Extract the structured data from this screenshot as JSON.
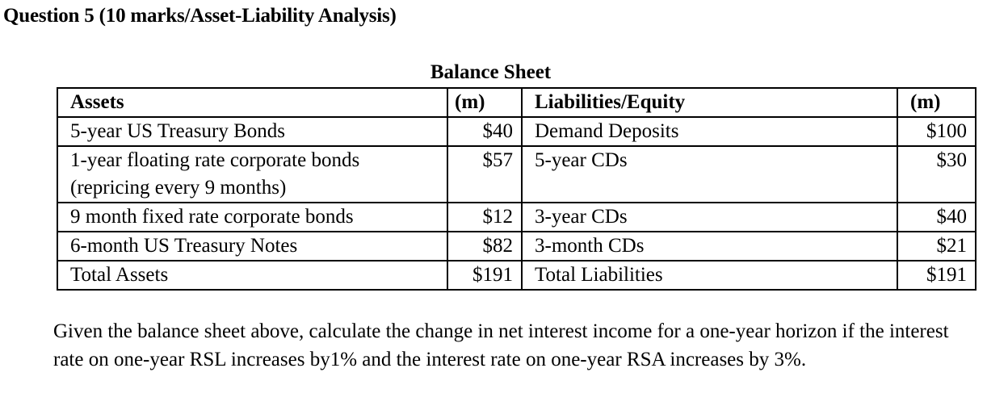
{
  "question": {
    "title": "Question 5 (10 marks/Asset-Liability Analysis)"
  },
  "balance_sheet": {
    "title": "Balance Sheet",
    "headers": {
      "assets": "Assets",
      "assets_unit": "(m)",
      "liabilities": "Liabilities/Equity",
      "liabilities_unit": "(m)"
    },
    "rows": [
      {
        "asset": "5-year US Treasury Bonds",
        "asset_value": "$40",
        "liability": "Demand Deposits",
        "liability_value": "$100"
      },
      {
        "asset": "1-year floating rate corporate bonds",
        "asset_note": "(repricing every 9 months)",
        "asset_value": "$57",
        "liability": "5-year CDs",
        "liability_value": "$30"
      },
      {
        "asset": "9 month fixed rate corporate bonds",
        "asset_value": "$12",
        "liability": "3-year CDs",
        "liability_value": "$40"
      },
      {
        "asset": "6-month US Treasury Notes",
        "asset_value": "$82",
        "liability": "3-month CDs",
        "liability_value": "$21"
      },
      {
        "asset": "Total Assets",
        "asset_value": "$191",
        "liability": "Total Liabilities",
        "liability_value": "$191"
      }
    ]
  },
  "prompt": {
    "text": "Given the balance sheet above, calculate the change in net interest income for a one-year horizon if the interest rate on one-year RSL increases by1% and the interest rate on one-year RSA increases by 3%."
  }
}
